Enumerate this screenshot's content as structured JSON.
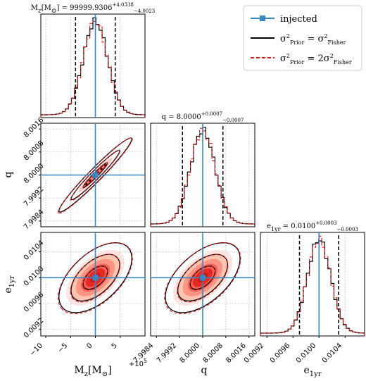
{
  "chart_data": {
    "type": "corner",
    "parameters": [
      {
        "key": "Mz",
        "label": "M_z[M_⊙]",
        "range": [
          -11,
          10
        ],
        "ticks": [
          -10,
          -5,
          0,
          5
        ],
        "injected": 0,
        "offset": "+10^5",
        "mean": 0.0,
        "sigma": 2.45,
        "title": {
          "prefix": "M_z[M_⊙] = 99999.9306",
          "sup": "+4.0338",
          "sub": "−4.0023"
        }
      },
      {
        "key": "q",
        "label": "q",
        "range": [
          7.9982,
          8.0018
        ],
        "ticks": [
          7.9984,
          7.9992,
          8.0,
          8.0008,
          8.0016
        ],
        "injected": 8.0,
        "mean": 8.0,
        "sigma": 0.00043,
        "title": {
          "prefix": "q = 8.0000",
          "sup": "+0.0007",
          "sub": "−0.0007"
        }
      },
      {
        "key": "e",
        "label": "e_1yr",
        "range": [
          0.0091,
          0.0107
        ],
        "ticks": [
          0.0092,
          0.0096,
          0.01,
          0.0104
        ],
        "injected": 0.01,
        "mean": 0.01,
        "sigma": 0.00018,
        "title": {
          "prefix": "e_1yr = 0.0100",
          "sup": "+0.0003",
          "sub": "−0.0003"
        }
      }
    ],
    "quantiles_95": {
      "Mz": [
        -4.0,
        4.0
      ],
      "q": [
        7.9993,
        8.0007
      ],
      "e": [
        0.0097,
        0.0103
      ]
    },
    "correlations": {
      "Mz_q": 0.97,
      "Mz_e": 0.55,
      "q_e": 0.55
    },
    "axis_offset_text": "+10^5",
    "legend": {
      "location": "top-right",
      "entries": [
        {
          "label": "injected",
          "color": "#3a86c0",
          "style": "line-square"
        },
        {
          "label": "σ²_Prior = σ²_Fisher",
          "color": "#000000",
          "style": "solid"
        },
        {
          "label": "σ²_Prior = 2σ²_Fisher",
          "color": "#e31a1c",
          "style": "dashed"
        }
      ]
    },
    "colors": {
      "injected": "#3a86c0",
      "fisher": "#000000",
      "prior2": "#e31a1c"
    },
    "grid": true
  }
}
